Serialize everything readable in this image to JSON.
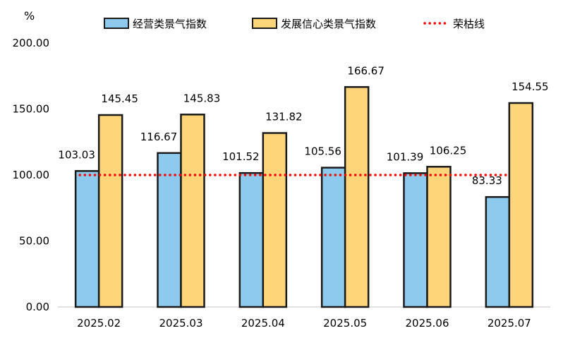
{
  "chart_data": {
    "type": "bar",
    "y_unit": "%",
    "categories": [
      "2025.02",
      "2025.03",
      "2025.04",
      "2025.05",
      "2025.06",
      "2025.07"
    ],
    "series": [
      {
        "name": "经营类景气指数",
        "values": [
          103.03,
          116.67,
          101.52,
          105.56,
          101.39,
          83.33
        ],
        "labels": [
          "103.03",
          "116.67",
          "101.52",
          "105.56",
          "101.39",
          "83.33"
        ],
        "color": "#8EC9EE"
      },
      {
        "name": "发展信心类景气指数",
        "values": [
          145.45,
          145.83,
          131.82,
          166.67,
          106.25,
          154.55
        ],
        "labels": [
          "145.45",
          "145.83",
          "131.82",
          "166.67",
          "106.25",
          "154.55"
        ],
        "color": "#FFD57A"
      }
    ],
    "reference_line": {
      "name": "荣枯线",
      "value": 100,
      "color": "#FF0000",
      "style": "dotted"
    },
    "ylim": [
      0,
      200
    ],
    "yticks": [
      "0.00",
      "50.00",
      "100.00",
      "150.00",
      "200.00"
    ],
    "ytick_values": [
      0,
      50,
      100,
      150,
      200
    ],
    "grid": false,
    "legend_position": "top"
  }
}
